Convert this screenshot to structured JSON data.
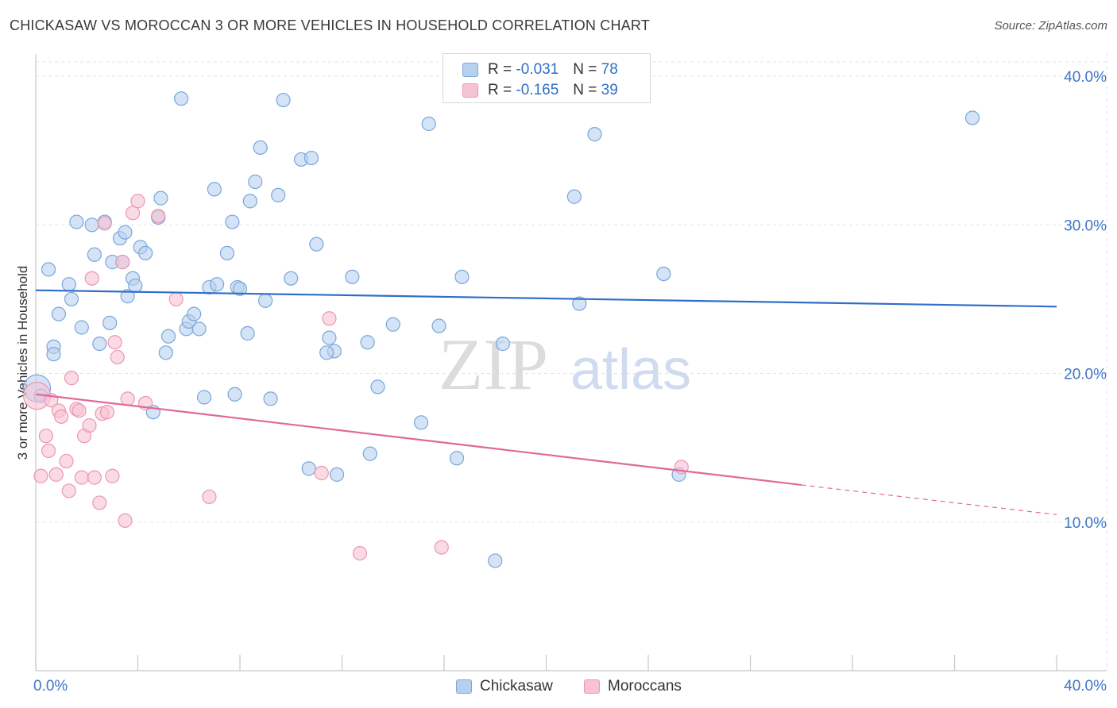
{
  "title": "CHICKASAW VS MOROCCAN 3 OR MORE VEHICLES IN HOUSEHOLD CORRELATION CHART",
  "source": "Source: ZipAtlas.com",
  "watermark": {
    "zip": "ZIP",
    "atlas": "atlas"
  },
  "colors": {
    "blue_fill": "#b8d0f0",
    "blue_stroke": "#7aa6dc",
    "blue_line": "#2f6fc9",
    "pink_fill": "#f7c3d2",
    "pink_stroke": "#eb97b0",
    "pink_line": "#e0699a",
    "axis_text": "#3f76c8",
    "grid": "#e3e3e3"
  },
  "legend": {
    "rows": [
      {
        "r_label": "R =",
        "r_value": "-0.031",
        "n_label": "N =",
        "n_value": "78"
      },
      {
        "r_label": "R =",
        "r_value": "-0.165",
        "n_label": "N =",
        "n_value": "39"
      }
    ]
  },
  "bottom_legend": [
    "Chickasaw",
    "Moroccans"
  ],
  "chart_data": {
    "type": "scatter",
    "title": "CHICKASAW VS MOROCCAN 3 OR MORE VEHICLES IN HOUSEHOLD CORRELATION CHART",
    "xlabel": "",
    "ylabel": "3 or more Vehicles in Household",
    "xlim": [
      0,
      40
    ],
    "ylim": [
      0,
      41.5
    ],
    "x_tick_labels": [
      "0.0%",
      "40.0%"
    ],
    "y_ticks": [
      10,
      20,
      30,
      40
    ],
    "y_tick_labels": [
      "10.0%",
      "20.0%",
      "30.0%",
      "40.0%"
    ],
    "grid": true,
    "legend_position": "top-center",
    "series": [
      {
        "name": "Chickasaw",
        "r": -0.031,
        "n": 78,
        "trend": {
          "x": [
            0,
            40
          ],
          "y": [
            25.6,
            24.5
          ]
        },
        "points": [
          [
            0.05,
            19.0
          ],
          [
            0.5,
            27.0
          ],
          [
            0.7,
            21.8
          ],
          [
            0.9,
            24.0
          ],
          [
            1.3,
            26.0
          ],
          [
            1.4,
            25.0
          ],
          [
            1.6,
            30.2
          ],
          [
            1.8,
            23.1
          ],
          [
            0.7,
            21.3
          ],
          [
            2.2,
            30.0
          ],
          [
            2.3,
            28.0
          ],
          [
            2.5,
            22.0
          ],
          [
            2.7,
            30.2
          ],
          [
            2.9,
            23.4
          ],
          [
            3.0,
            27.5
          ],
          [
            3.3,
            29.1
          ],
          [
            3.5,
            29.5
          ],
          [
            3.6,
            25.2
          ],
          [
            3.8,
            26.4
          ],
          [
            3.9,
            25.9
          ],
          [
            4.1,
            28.5
          ],
          [
            4.3,
            28.1
          ],
          [
            4.6,
            17.4
          ],
          [
            4.8,
            30.5
          ],
          [
            4.9,
            31.8
          ],
          [
            5.1,
            21.4
          ],
          [
            5.2,
            22.5
          ],
          [
            5.7,
            38.5
          ],
          [
            5.9,
            23.0
          ],
          [
            6.0,
            23.5
          ],
          [
            6.2,
            24.0
          ],
          [
            6.4,
            23.0
          ],
          [
            6.6,
            18.4
          ],
          [
            6.8,
            25.8
          ],
          [
            7.0,
            32.4
          ],
          [
            7.1,
            26.0
          ],
          [
            7.5,
            28.1
          ],
          [
            7.7,
            30.2
          ],
          [
            7.8,
            18.6
          ],
          [
            7.9,
            25.8
          ],
          [
            8.0,
            25.7
          ],
          [
            8.3,
            22.7
          ],
          [
            8.4,
            31.6
          ],
          [
            8.6,
            32.9
          ],
          [
            8.8,
            35.2
          ],
          [
            9.0,
            24.9
          ],
          [
            9.2,
            18.3
          ],
          [
            9.5,
            32.0
          ],
          [
            9.7,
            38.4
          ],
          [
            10.0,
            26.4
          ],
          [
            10.4,
            34.4
          ],
          [
            10.8,
            34.5
          ],
          [
            11.0,
            28.7
          ],
          [
            10.7,
            13.6
          ],
          [
            11.5,
            22.4
          ],
          [
            11.7,
            21.5
          ],
          [
            11.4,
            21.4
          ],
          [
            11.8,
            13.2
          ],
          [
            12.4,
            26.5
          ],
          [
            13.0,
            22.1
          ],
          [
            13.1,
            14.6
          ],
          [
            13.4,
            19.1
          ],
          [
            14.0,
            23.3
          ],
          [
            15.1,
            16.7
          ],
          [
            15.4,
            36.8
          ],
          [
            15.8,
            23.2
          ],
          [
            16.5,
            14.3
          ],
          [
            16.7,
            26.5
          ],
          [
            18.0,
            7.4
          ],
          [
            18.3,
            22.0
          ],
          [
            21.1,
            31.9
          ],
          [
            21.3,
            24.7
          ],
          [
            21.9,
            36.1
          ],
          [
            24.6,
            26.7
          ],
          [
            25.2,
            13.2
          ],
          [
            36.7,
            37.2
          ],
          [
            0.2,
            18.5
          ],
          [
            3.4,
            27.5
          ]
        ]
      },
      {
        "name": "Moroccans",
        "r": -0.165,
        "n": 39,
        "trend": {
          "x": [
            0,
            30.0
          ],
          "y": [
            18.6,
            12.5
          ]
        },
        "trend_dashed": {
          "x": [
            30.0,
            40
          ],
          "y": [
            12.5,
            10.5
          ]
        },
        "points": [
          [
            0.05,
            18.5
          ],
          [
            0.2,
            13.1
          ],
          [
            0.4,
            15.8
          ],
          [
            0.5,
            14.8
          ],
          [
            0.6,
            18.2
          ],
          [
            0.8,
            13.2
          ],
          [
            0.9,
            17.5
          ],
          [
            1.0,
            17.1
          ],
          [
            1.2,
            14.1
          ],
          [
            1.3,
            12.1
          ],
          [
            1.4,
            19.7
          ],
          [
            1.6,
            17.6
          ],
          [
            1.7,
            17.5
          ],
          [
            1.8,
            13.0
          ],
          [
            1.9,
            15.8
          ],
          [
            2.1,
            16.5
          ],
          [
            2.2,
            26.4
          ],
          [
            2.3,
            13.0
          ],
          [
            2.5,
            11.3
          ],
          [
            2.6,
            17.3
          ],
          [
            2.7,
            30.1
          ],
          [
            2.8,
            17.4
          ],
          [
            3.0,
            13.1
          ],
          [
            3.1,
            22.1
          ],
          [
            3.2,
            21.1
          ],
          [
            3.4,
            27.5
          ],
          [
            3.5,
            10.1
          ],
          [
            3.6,
            18.3
          ],
          [
            3.8,
            30.8
          ],
          [
            4.0,
            31.6
          ],
          [
            4.3,
            18.0
          ],
          [
            4.8,
            30.6
          ],
          [
            5.5,
            25.0
          ],
          [
            6.8,
            11.7
          ],
          [
            11.2,
            13.3
          ],
          [
            11.5,
            23.7
          ],
          [
            12.7,
            7.9
          ],
          [
            15.9,
            8.3
          ],
          [
            25.3,
            13.7
          ]
        ]
      }
    ]
  }
}
